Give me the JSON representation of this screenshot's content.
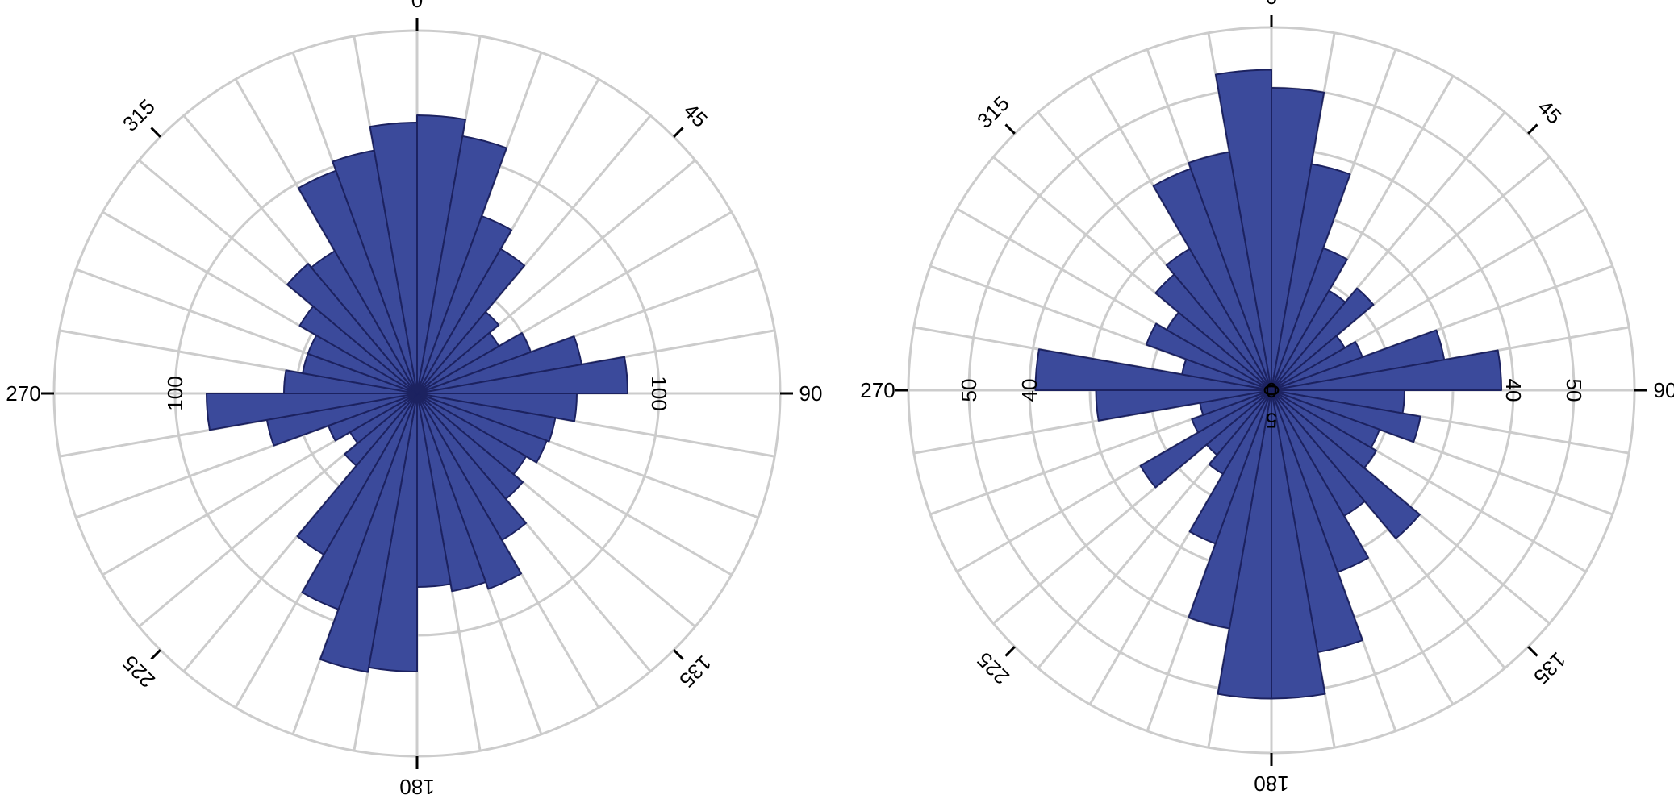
{
  "chart_data": [
    {
      "type": "polar_bar",
      "direction": "clockwise",
      "zero_at": "top",
      "bin_width_degrees": 10,
      "rmax": 150,
      "grid_rings": [
        50,
        100,
        150
      ],
      "angle_ticks": [
        "0",
        "45",
        "90",
        "135",
        "180",
        "225",
        "270",
        "315"
      ],
      "radial_labels": [
        {
          "angle": 90,
          "value": "100"
        },
        {
          "angle": 270,
          "value": "100"
        }
      ],
      "values": [
        115,
        108,
        78,
        69,
        44,
        39,
        50,
        69,
        87,
        66,
        58,
        57,
        52,
        57,
        70,
        86,
        83,
        80,
        115,
        117,
        95,
        77,
        39,
        32,
        39,
        63,
        87,
        55,
        48,
        48,
        56,
        70,
        68,
        98,
        102,
        112
      ]
    },
    {
      "type": "polar_bar",
      "direction": "clockwise",
      "zero_at": "top",
      "bin_width_degrees": 10,
      "rmax": 60,
      "grid_rings": [
        10,
        20,
        30,
        40,
        50,
        60
      ],
      "angle_ticks": [
        "0",
        "45",
        "90",
        "135",
        "180",
        "225",
        "270",
        "315"
      ],
      "radial_labels": [
        {
          "angle": 0,
          "value": "0"
        },
        {
          "angle": 90,
          "value": "0"
        },
        {
          "angle": 90,
          "value": "40"
        },
        {
          "angle": 90,
          "value": "50"
        },
        {
          "angle": 180,
          "value": "5"
        },
        {
          "angle": 270,
          "value": "0"
        },
        {
          "angle": 270,
          "value": "40"
        },
        {
          "angle": 270,
          "value": "50"
        }
      ],
      "values": [
        50,
        38,
        25,
        19,
        22,
        14,
        16,
        29,
        38,
        22,
        25,
        19,
        20,
        32,
        24,
        32,
        44,
        51,
        51,
        40,
        27,
        16,
        14,
        25,
        14,
        12,
        29,
        39,
        15,
        22,
        20,
        25,
        27,
        39,
        40,
        53
      ]
    }
  ]
}
